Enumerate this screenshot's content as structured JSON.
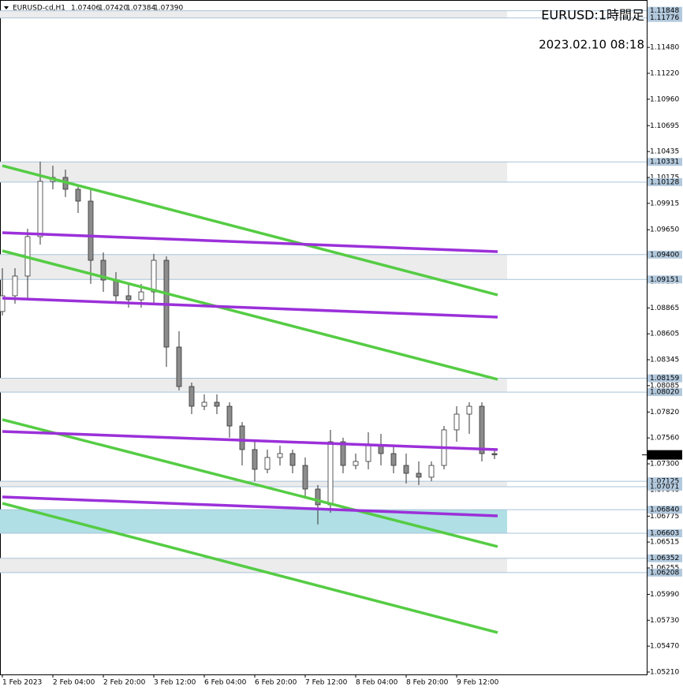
{
  "chart_data": {
    "type": "candlestick",
    "title": "EURUSD:1時間足",
    "annotations": [
      "2023.02.10 08:18"
    ],
    "symbol": "EURUSD-cd,H1",
    "ohlc_header": [
      "1.07406",
      "1.07420",
      "1.07384",
      "1.07390"
    ],
    "x": [
      0,
      4,
      8,
      12,
      16,
      20,
      24,
      28,
      32,
      36,
      40,
      44,
      48,
      52,
      56,
      60,
      64,
      68,
      72,
      76,
      80,
      84,
      88,
      92,
      96,
      100,
      104,
      108,
      112,
      116,
      120,
      124,
      128,
      132,
      136,
      140,
      144,
      148,
      152,
      156
    ],
    "open": [
      1.08829,
      1.08987,
      1.09185,
      1.09581,
      1.10135,
      1.10175,
      1.10056,
      1.09937,
      1.09343,
      1.09145,
      1.08987,
      1.08947,
      1.09026,
      1.09343,
      1.08472,
      1.08076,
      1.07878,
      1.07918,
      1.07878,
      1.0768,
      1.07443,
      1.07245,
      1.07364,
      1.07403,
      1.07284,
      1.07047,
      1.06889,
      1.07522,
      1.07284,
      1.07324,
      1.07482,
      1.07403,
      1.07284,
      1.07205,
      1.07166,
      1.07284,
      1.07641,
      1.07799,
      1.07878,
      1.07403
    ],
    "high": [
      1.09264,
      1.09264,
      1.0966,
      1.10333,
      1.10293,
      1.10254,
      1.10095,
      1.10056,
      1.09422,
      1.09224,
      1.09106,
      1.09106,
      1.09407,
      1.09383,
      1.08631,
      1.08116,
      1.07997,
      1.07997,
      1.07918,
      1.0772,
      1.07522,
      1.07443,
      1.07482,
      1.07443,
      1.07364,
      1.07087,
      1.07641,
      1.07562,
      1.07403,
      1.07617,
      1.07601,
      1.07482,
      1.07403,
      1.07324,
      1.07324,
      1.0768,
      1.07878,
      1.07918,
      1.07918,
      1.07443
    ],
    "low": [
      1.08789,
      1.08908,
      1.08947,
      1.09501,
      1.10056,
      1.09977,
      1.09818,
      1.09106,
      1.09026,
      1.08908,
      1.08868,
      1.08868,
      1.08908,
      1.08274,
      1.08037,
      1.07799,
      1.07839,
      1.07799,
      1.07562,
      1.07284,
      1.07126,
      1.07205,
      1.07284,
      1.07205,
      1.06952,
      1.06691,
      1.06809,
      1.07205,
      1.07245,
      1.07245,
      1.07284,
      1.07205,
      1.07102,
      1.07087,
      1.07126,
      1.07245,
      1.07522,
      1.07601,
      1.07324,
      1.07348
    ],
    "close": [
      1.08987,
      1.09185,
      1.09581,
      1.10135,
      1.10175,
      1.10056,
      1.09937,
      1.09343,
      1.09145,
      1.08987,
      1.08947,
      1.09026,
      1.09343,
      1.08472,
      1.08076,
      1.07878,
      1.07918,
      1.07878,
      1.0768,
      1.07443,
      1.07245,
      1.07364,
      1.07403,
      1.07284,
      1.07047,
      1.06889,
      1.07522,
      1.07284,
      1.07324,
      1.07482,
      1.07403,
      1.07284,
      1.07205,
      1.07166,
      1.07284,
      1.07641,
      1.07799,
      1.07878,
      1.07403,
      1.0739
    ],
    "up_color": "#ffffff",
    "down_color": "#8c8c8c",
    "xlim": [
      -0.75,
      204.25
    ],
    "ylim": [
      1.05186,
      1.11956
    ],
    "xticks": [
      {
        "value": 0,
        "label": "1 Feb 2023"
      },
      {
        "value": 16,
        "label": "2 Feb 04:00"
      },
      {
        "value": 32,
        "label": "2 Feb 20:00"
      },
      {
        "value": 48,
        "label": "3 Feb 12:00"
      },
      {
        "value": 64,
        "label": "6 Feb 04:00"
      },
      {
        "value": 80,
        "label": "6 Feb 20:00"
      },
      {
        "value": 96,
        "label": "7 Feb 12:00"
      },
      {
        "value": 112,
        "label": "8 Feb 04:00"
      },
      {
        "value": 128,
        "label": "8 Feb 20:00"
      },
      {
        "value": 144,
        "label": "9 Feb 12:00"
      }
    ],
    "yticks": [
      {
        "value": 1.1148,
        "label": "1.11480"
      },
      {
        "value": 1.1122,
        "label": "1.11220"
      },
      {
        "value": 1.1096,
        "label": "1.10960"
      },
      {
        "value": 1.10695,
        "label": "1.10695"
      },
      {
        "value": 1.10435,
        "label": "1.10435"
      },
      {
        "value": 1.10175,
        "label": "1.10175"
      },
      {
        "value": 1.09915,
        "label": "1.09915"
      },
      {
        "value": 1.0965,
        "label": "1.09650"
      },
      {
        "value": 1.0939,
        "label": "1.09390"
      },
      {
        "value": 1.0913,
        "label": "1.09130"
      },
      {
        "value": 1.08865,
        "label": "1.08865"
      },
      {
        "value": 1.08605,
        "label": "1.08605"
      },
      {
        "value": 1.08345,
        "label": "1.08345"
      },
      {
        "value": 1.08085,
        "label": "1.08085"
      },
      {
        "value": 1.0782,
        "label": "1.07820"
      },
      {
        "value": 1.0756,
        "label": "1.07560"
      },
      {
        "value": 1.073,
        "label": "1.07300"
      },
      {
        "value": 1.0704,
        "label": "1.07040"
      },
      {
        "value": 1.06775,
        "label": "1.06775"
      },
      {
        "value": 1.06515,
        "label": "1.06515"
      },
      {
        "value": 1.06255,
        "label": "1.06255"
      },
      {
        "value": 1.0599,
        "label": "1.05990"
      },
      {
        "value": 1.0573,
        "label": "1.05730"
      },
      {
        "value": 1.0547,
        "label": "1.05470"
      },
      {
        "value": 1.0521,
        "label": "1.05210"
      }
    ],
    "zones": [
      {
        "top": {
          "value": 1.11848,
          "label": "1.11848"
        },
        "bottom": {
          "value": 1.11776,
          "label": "1.11776"
        },
        "color": "#ececec"
      },
      {
        "top": {
          "value": 1.10331,
          "label": "1.10331"
        },
        "bottom": {
          "value": 1.10128,
          "label": "1.10128"
        },
        "color": "#ececec"
      },
      {
        "top": {
          "value": 1.094,
          "label": "1.09400"
        },
        "bottom": {
          "value": 1.09151,
          "label": "1.09151"
        },
        "color": "#ececec"
      },
      {
        "top": {
          "value": 1.08159,
          "label": "1.08159"
        },
        "bottom": {
          "value": 1.0802,
          "label": "1.08020"
        },
        "color": "#ececec"
      },
      {
        "top": {
          "value": 1.07125,
          "label": "1.07125"
        },
        "bottom": {
          "value": 1.07071,
          "label": "1.07071"
        },
        "color": "#ececec"
      },
      {
        "top": {
          "value": 1.0684,
          "label": "1.06840"
        },
        "bottom": {
          "value": 1.06603,
          "label": "1.06603"
        },
        "color": "#b0dfe5"
      },
      {
        "top": {
          "value": 1.06352,
          "label": "1.06352"
        },
        "bottom": {
          "value": 1.06208,
          "label": "1.06208"
        },
        "color": "#ececec"
      }
    ],
    "current_price": {
      "value": 1.0739,
      "label": "1.07390"
    },
    "lines": [
      {
        "color": "#55cc44",
        "x": [
          0,
          157
        ],
        "y": [
          1.10293,
          1.08995
        ]
      },
      {
        "color": "#55cc44",
        "x": [
          0,
          157
        ],
        "y": [
          1.09438,
          1.08148
        ]
      },
      {
        "color": "#55cc44",
        "x": [
          0,
          157
        ],
        "y": [
          1.07744,
          1.06469
        ]
      },
      {
        "color": "#55cc44",
        "x": [
          0,
          157
        ],
        "y": [
          1.06904,
          1.05606
        ]
      },
      {
        "color": "#9b30d9",
        "x": [
          0,
          157
        ],
        "y": [
          1.0962,
          1.0943
        ]
      },
      {
        "color": "#9b30d9",
        "x": [
          0,
          157
        ],
        "y": [
          1.08963,
          1.08773
        ]
      },
      {
        "color": "#9b30d9",
        "x": [
          0,
          157
        ],
        "y": [
          1.07625,
          1.07443
        ]
      },
      {
        "color": "#9b30d9",
        "x": [
          0,
          157
        ],
        "y": [
          1.06968,
          1.06778
        ]
      }
    ]
  }
}
